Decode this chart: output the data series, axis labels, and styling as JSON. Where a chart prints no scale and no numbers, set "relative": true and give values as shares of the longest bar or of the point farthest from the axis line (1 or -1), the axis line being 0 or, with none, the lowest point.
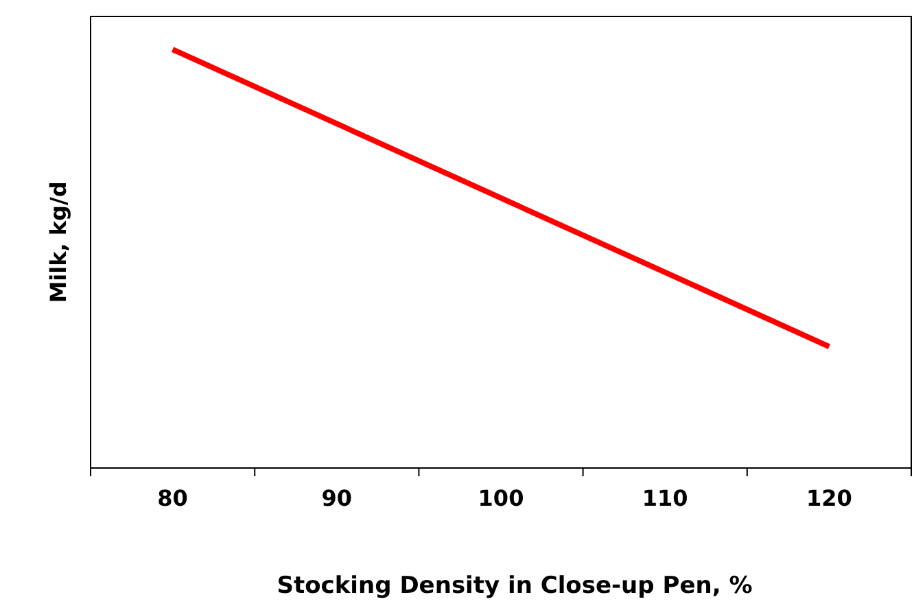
{
  "chart_data": {
    "type": "line",
    "relative": true,
    "xlabel": "Stocking Density in Close-up Pen, %",
    "ylabel": "Milk, kg/d",
    "x": [
      80,
      120
    ],
    "series": [
      {
        "color": "#ff0000",
        "values": [
          1,
          0.29
        ]
      }
    ],
    "xlim": [
      75,
      125
    ],
    "xticks": [
      {
        "value": 75,
        "label": null
      },
      80,
      {
        "value": 85,
        "label": null
      },
      90,
      {
        "value": 95,
        "label": null
      },
      100,
      {
        "value": 105,
        "label": null
      },
      110,
      {
        "value": 115,
        "label": null
      },
      120
    ],
    "tick_labels": "x",
    "marker": "none",
    "line_style": "solid"
  }
}
